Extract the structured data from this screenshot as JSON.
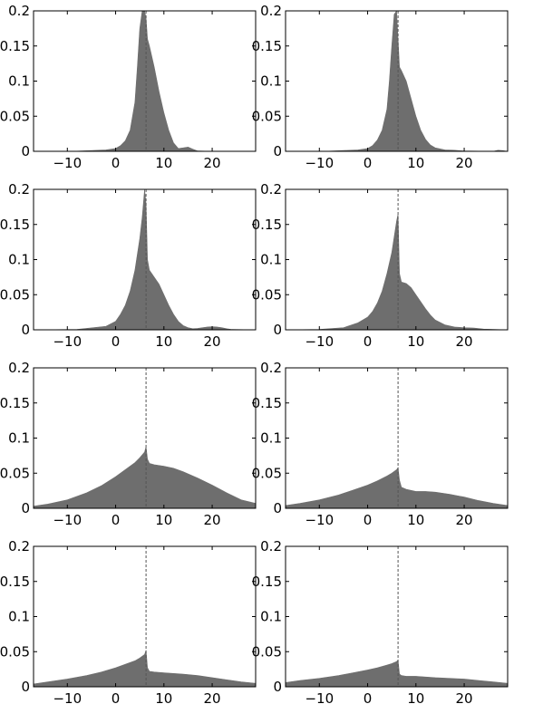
{
  "figure": {
    "layout": "4x2 grid of histogram panels",
    "colors": {
      "fill": "#6e6e6e",
      "axis": "#000000",
      "reference_line": "#555555",
      "background": "#ffffff"
    }
  },
  "chart_data": [
    {
      "type": "area",
      "panel": "row1-left",
      "xlim": [
        -17,
        29
      ],
      "ylim": [
        0,
        0.2
      ],
      "xticks": [
        -10,
        0,
        10,
        20
      ],
      "yticks": [
        0,
        0.05,
        0.1,
        0.15,
        0.2
      ],
      "xtick_labels": [
        "−10",
        "0",
        "10",
        "20"
      ],
      "ytick_labels": [
        "0",
        "0.05",
        "0.1",
        "0.15",
        "0.2"
      ],
      "reference_x": 6.3,
      "x": [
        -17,
        -8,
        -2,
        0,
        1,
        2,
        3,
        4,
        4.5,
        5,
        5.5,
        6,
        6.3,
        6.6,
        7,
        8,
        9,
        10,
        11,
        12,
        13,
        14,
        15,
        16,
        17,
        20,
        29
      ],
      "y": [
        0,
        0.0003,
        0.002,
        0.004,
        0.008,
        0.015,
        0.03,
        0.07,
        0.12,
        0.175,
        0.2,
        0.2,
        0.19,
        0.16,
        0.15,
        0.12,
        0.085,
        0.055,
        0.03,
        0.012,
        0.004,
        0.005,
        0.006,
        0.003,
        0.0005,
        0,
        0
      ]
    },
    {
      "type": "area",
      "panel": "row1-right",
      "xlim": [
        -17,
        29
      ],
      "ylim": [
        0,
        0.2
      ],
      "xticks": [
        -10,
        0,
        10,
        20
      ],
      "yticks": [
        0,
        0.05,
        0.1,
        0.15,
        0.2
      ],
      "xtick_labels": [
        "−10",
        "0",
        "10",
        "20"
      ],
      "ytick_labels": [
        "0",
        "0.05",
        "0.1",
        "0.15",
        "0.2"
      ],
      "reference_x": 6.3,
      "x": [
        -17,
        -8,
        -2,
        0,
        1,
        2,
        3,
        4,
        4.5,
        5,
        5.5,
        6,
        6.3,
        6.6,
        7,
        8,
        9,
        10,
        11,
        12,
        13,
        14,
        16,
        18,
        20,
        26,
        27,
        28,
        29
      ],
      "y": [
        0,
        0.0003,
        0.002,
        0.004,
        0.008,
        0.016,
        0.03,
        0.06,
        0.1,
        0.15,
        0.195,
        0.2,
        0.16,
        0.12,
        0.115,
        0.1,
        0.075,
        0.05,
        0.03,
        0.017,
        0.009,
        0.005,
        0.002,
        0.0015,
        0.0005,
        0,
        0.0015,
        0.001,
        0
      ]
    },
    {
      "type": "area",
      "panel": "row2-left",
      "xlim": [
        -17,
        29
      ],
      "ylim": [
        0,
        0.2
      ],
      "xticks": [
        -10,
        0,
        10,
        20
      ],
      "yticks": [
        0,
        0.05,
        0.1,
        0.15,
        0.2
      ],
      "xtick_labels": [
        "−10",
        "0",
        "10",
        "20"
      ],
      "ytick_labels": [
        "0",
        "0.05",
        "0.1",
        "0.15",
        "0.2"
      ],
      "reference_x": 6.3,
      "x": [
        -17,
        -8,
        -2,
        0,
        1,
        2,
        3,
        4,
        5,
        5.5,
        6,
        6.3,
        6.6,
        7,
        8,
        9,
        10,
        11,
        12,
        13,
        14,
        15,
        16,
        17,
        18,
        19,
        20,
        21,
        22,
        23,
        24,
        29
      ],
      "y": [
        0,
        0.0005,
        0.005,
        0.012,
        0.022,
        0.035,
        0.055,
        0.085,
        0.13,
        0.16,
        0.2,
        0.18,
        0.1,
        0.085,
        0.075,
        0.065,
        0.05,
        0.035,
        0.022,
        0.012,
        0.006,
        0.003,
        0.0015,
        0.002,
        0.003,
        0.004,
        0.0045,
        0.004,
        0.003,
        0.0015,
        0.0005,
        0
      ]
    },
    {
      "type": "area",
      "panel": "row2-right",
      "xlim": [
        -17,
        29
      ],
      "ylim": [
        0,
        0.2
      ],
      "xticks": [
        -10,
        0,
        10,
        20
      ],
      "yticks": [
        0,
        0.05,
        0.1,
        0.15,
        0.2
      ],
      "xtick_labels": [
        "−10",
        "0",
        "10",
        "20"
      ],
      "ytick_labels": [
        "0",
        "0.05",
        "0.1",
        "0.15",
        "0.2"
      ],
      "reference_x": 6.3,
      "x": [
        -17,
        -10,
        -5,
        -2,
        0,
        1,
        2,
        3,
        4,
        5,
        6,
        6.3,
        6.6,
        7,
        8,
        9,
        10,
        11,
        12,
        13,
        14,
        16,
        18,
        20,
        22,
        24,
        29
      ],
      "y": [
        0,
        0.0005,
        0.003,
        0.01,
        0.018,
        0.026,
        0.038,
        0.055,
        0.08,
        0.11,
        0.155,
        0.165,
        0.08,
        0.068,
        0.066,
        0.06,
        0.05,
        0.04,
        0.03,
        0.021,
        0.014,
        0.007,
        0.004,
        0.003,
        0.0025,
        0.001,
        0
      ]
    },
    {
      "type": "area",
      "panel": "row3-left",
      "xlim": [
        -17,
        29
      ],
      "ylim": [
        0,
        0.2
      ],
      "xticks": [
        -10,
        0,
        10,
        20
      ],
      "yticks": [
        0,
        0.05,
        0.1,
        0.15,
        0.2
      ],
      "xtick_labels": [
        "−10",
        "0",
        "10",
        "20"
      ],
      "ytick_labels": [
        "0",
        "0.05",
        "0.1",
        "0.15",
        "0.2"
      ],
      "reference_x": 6.3,
      "x": [
        -17,
        -14,
        -10,
        -6,
        -3,
        0,
        2,
        4,
        5,
        6,
        6.3,
        6.6,
        7,
        8,
        10,
        12,
        14,
        17,
        20,
        23,
        26,
        29
      ],
      "y": [
        0.003,
        0.006,
        0.012,
        0.022,
        0.032,
        0.045,
        0.055,
        0.065,
        0.072,
        0.08,
        0.088,
        0.07,
        0.064,
        0.062,
        0.06,
        0.057,
        0.052,
        0.043,
        0.033,
        0.022,
        0.012,
        0.007
      ]
    },
    {
      "type": "area",
      "panel": "row3-right",
      "xlim": [
        -17,
        29
      ],
      "ylim": [
        0,
        0.2
      ],
      "xticks": [
        -10,
        0,
        10,
        20
      ],
      "yticks": [
        0,
        0.05,
        0.1,
        0.15,
        0.2
      ],
      "xtick_labels": [
        "−10",
        "0",
        "10",
        "20"
      ],
      "ytick_labels": [
        "0",
        "0.05",
        "0.1",
        "0.15",
        "0.2"
      ],
      "reference_x": 6.3,
      "x": [
        -17,
        -14,
        -10,
        -6,
        -3,
        0,
        2,
        4,
        5,
        6,
        6.3,
        6.6,
        7,
        8,
        10,
        12,
        14,
        17,
        20,
        23,
        26,
        29
      ],
      "y": [
        0.004,
        0.007,
        0.012,
        0.019,
        0.026,
        0.033,
        0.039,
        0.046,
        0.05,
        0.055,
        0.058,
        0.04,
        0.03,
        0.027,
        0.024,
        0.024,
        0.023,
        0.02,
        0.016,
        0.011,
        0.007,
        0.004
      ]
    },
    {
      "type": "area",
      "panel": "row4-left",
      "xlim": [
        -17,
        29
      ],
      "ylim": [
        0,
        0.2
      ],
      "xticks": [
        -10,
        0,
        10,
        20
      ],
      "yticks": [
        0,
        0.05,
        0.1,
        0.15,
        0.2
      ],
      "xtick_labels": [
        "−10",
        "0",
        "10",
        "20"
      ],
      "ytick_labels": [
        "0",
        "0.05",
        "0.1",
        "0.15",
        "0.2"
      ],
      "reference_x": 6.3,
      "x": [
        -17,
        -14,
        -10,
        -6,
        -3,
        0,
        2,
        4,
        5,
        6,
        6.3,
        6.6,
        7,
        8,
        10,
        12,
        14,
        17,
        20,
        23,
        26,
        29
      ],
      "y": [
        0.004,
        0.007,
        0.011,
        0.016,
        0.021,
        0.027,
        0.032,
        0.037,
        0.041,
        0.046,
        0.052,
        0.027,
        0.022,
        0.021,
        0.02,
        0.019,
        0.018,
        0.016,
        0.013,
        0.01,
        0.007,
        0.005
      ]
    },
    {
      "type": "area",
      "panel": "row4-right",
      "xlim": [
        -17,
        29
      ],
      "ylim": [
        0,
        0.2
      ],
      "xticks": [
        -10,
        0,
        10,
        20
      ],
      "yticks": [
        0,
        0.05,
        0.1,
        0.15,
        0.2
      ],
      "xtick_labels": [
        "−10",
        "0",
        "10",
        "20"
      ],
      "ytick_labels": [
        "0",
        "0.05",
        "0.1",
        "0.15",
        "0.2"
      ],
      "reference_x": 6.3,
      "x": [
        -17,
        -14,
        -10,
        -6,
        -3,
        0,
        2,
        4,
        5,
        6,
        6.3,
        6.6,
        7,
        8,
        10,
        12,
        14,
        17,
        20,
        23,
        26,
        29
      ],
      "y": [
        0.006,
        0.009,
        0.012,
        0.016,
        0.02,
        0.024,
        0.027,
        0.031,
        0.033,
        0.036,
        0.038,
        0.018,
        0.016,
        0.015,
        0.015,
        0.014,
        0.013,
        0.012,
        0.011,
        0.009,
        0.007,
        0.005
      ]
    }
  ]
}
